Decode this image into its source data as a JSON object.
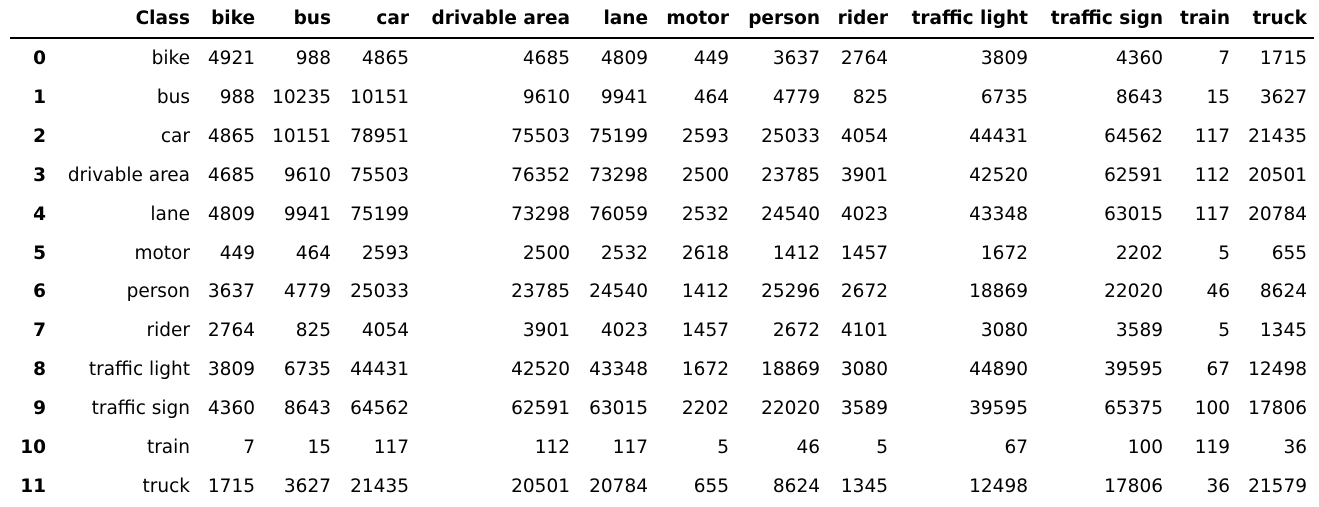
{
  "chart_data": {
    "type": "table",
    "index_header": "",
    "columns": [
      "Class",
      "bike",
      "bus",
      "car",
      "drivable area",
      "lane",
      "motor",
      "person",
      "rider",
      "traffic light",
      "traffic sign",
      "train",
      "truck"
    ],
    "rows": [
      {
        "index": "0",
        "cells": [
          "bike",
          "4921",
          "988",
          "4865",
          "4685",
          "4809",
          "449",
          "3637",
          "2764",
          "3809",
          "4360",
          "7",
          "1715"
        ]
      },
      {
        "index": "1",
        "cells": [
          "bus",
          "988",
          "10235",
          "10151",
          "9610",
          "9941",
          "464",
          "4779",
          "825",
          "6735",
          "8643",
          "15",
          "3627"
        ]
      },
      {
        "index": "2",
        "cells": [
          "car",
          "4865",
          "10151",
          "78951",
          "75503",
          "75199",
          "2593",
          "25033",
          "4054",
          "44431",
          "64562",
          "117",
          "21435"
        ]
      },
      {
        "index": "3",
        "cells": [
          "drivable area",
          "4685",
          "9610",
          "75503",
          "76352",
          "73298",
          "2500",
          "23785",
          "3901",
          "42520",
          "62591",
          "112",
          "20501"
        ]
      },
      {
        "index": "4",
        "cells": [
          "lane",
          "4809",
          "9941",
          "75199",
          "73298",
          "76059",
          "2532",
          "24540",
          "4023",
          "43348",
          "63015",
          "117",
          "20784"
        ]
      },
      {
        "index": "5",
        "cells": [
          "motor",
          "449",
          "464",
          "2593",
          "2500",
          "2532",
          "2618",
          "1412",
          "1457",
          "1672",
          "2202",
          "5",
          "655"
        ]
      },
      {
        "index": "6",
        "cells": [
          "person",
          "3637",
          "4779",
          "25033",
          "23785",
          "24540",
          "1412",
          "25296",
          "2672",
          "18869",
          "22020",
          "46",
          "8624"
        ]
      },
      {
        "index": "7",
        "cells": [
          "rider",
          "2764",
          "825",
          "4054",
          "3901",
          "4023",
          "1457",
          "2672",
          "4101",
          "3080",
          "3589",
          "5",
          "1345"
        ]
      },
      {
        "index": "8",
        "cells": [
          "traffic light",
          "3809",
          "6735",
          "44431",
          "42520",
          "43348",
          "1672",
          "18869",
          "3080",
          "44890",
          "39595",
          "67",
          "12498"
        ]
      },
      {
        "index": "9",
        "cells": [
          "traffic sign",
          "4360",
          "8643",
          "64562",
          "62591",
          "63015",
          "2202",
          "22020",
          "3589",
          "39595",
          "65375",
          "100",
          "17806"
        ]
      },
      {
        "index": "10",
        "cells": [
          "train",
          "7",
          "15",
          "117",
          "112",
          "117",
          "5",
          "46",
          "5",
          "67",
          "100",
          "119",
          "36"
        ]
      },
      {
        "index": "11",
        "cells": [
          "truck",
          "1715",
          "3627",
          "21435",
          "20501",
          "20784",
          "655",
          "8624",
          "1345",
          "12498",
          "17806",
          "36",
          "21579"
        ]
      }
    ]
  }
}
